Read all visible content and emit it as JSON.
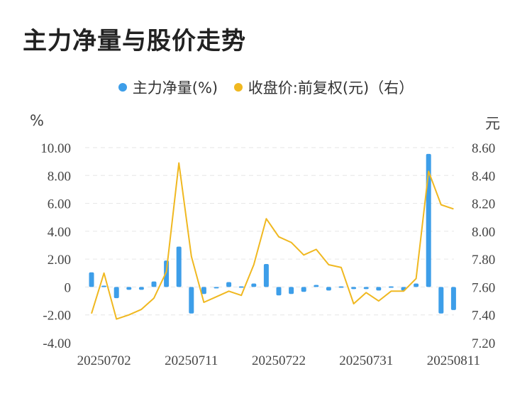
{
  "title": "主力净量与股价走势",
  "legend": {
    "series1": "主力净量(%)",
    "series2": "收盘价:前复权(元)（右）"
  },
  "units": {
    "left": "%",
    "right": "元"
  },
  "colors": {
    "bar": "#3d9ee9",
    "line": "#f0b820"
  },
  "chart_data": {
    "type": "bar+line",
    "x_labels": [
      "20250702",
      "20250711",
      "20250722",
      "20250731",
      "20250811"
    ],
    "x_label_index": [
      1,
      8,
      15,
      22,
      29
    ],
    "y_left_ticks": [
      "10.00",
      "8.00",
      "6.00",
      "4.00",
      "2.00",
      "0",
      "-2.00",
      "-4.00"
    ],
    "y_left_range": [
      -4,
      10
    ],
    "y_right_ticks": [
      "8.60",
      "8.40",
      "8.20",
      "8.00",
      "7.80",
      "7.60",
      "7.40",
      "7.20"
    ],
    "y_right_range": [
      7.2,
      8.6
    ],
    "series": [
      {
        "name": "主力净量(%)",
        "type": "bar",
        "values": [
          1.05,
          0.1,
          -0.8,
          -0.2,
          -0.2,
          0.4,
          1.9,
          2.9,
          -1.9,
          -0.5,
          -0.1,
          0.35,
          0.05,
          0.25,
          1.65,
          -0.6,
          -0.5,
          -0.35,
          0.15,
          -0.25,
          0.05,
          -0.15,
          -0.15,
          -0.25,
          0.05,
          -0.25,
          0.25,
          9.55,
          -1.9,
          -1.65
        ]
      },
      {
        "name": "收盘价:前复权(元)（右）",
        "type": "line",
        "values": [
          7.41,
          7.7,
          7.37,
          7.4,
          7.44,
          7.52,
          7.71,
          8.49,
          7.82,
          7.49,
          7.53,
          7.57,
          7.54,
          7.76,
          8.09,
          7.96,
          7.92,
          7.83,
          7.87,
          7.76,
          7.74,
          7.48,
          7.56,
          7.5,
          7.57,
          7.57,
          7.66,
          8.43,
          8.19,
          8.16
        ]
      }
    ]
  }
}
